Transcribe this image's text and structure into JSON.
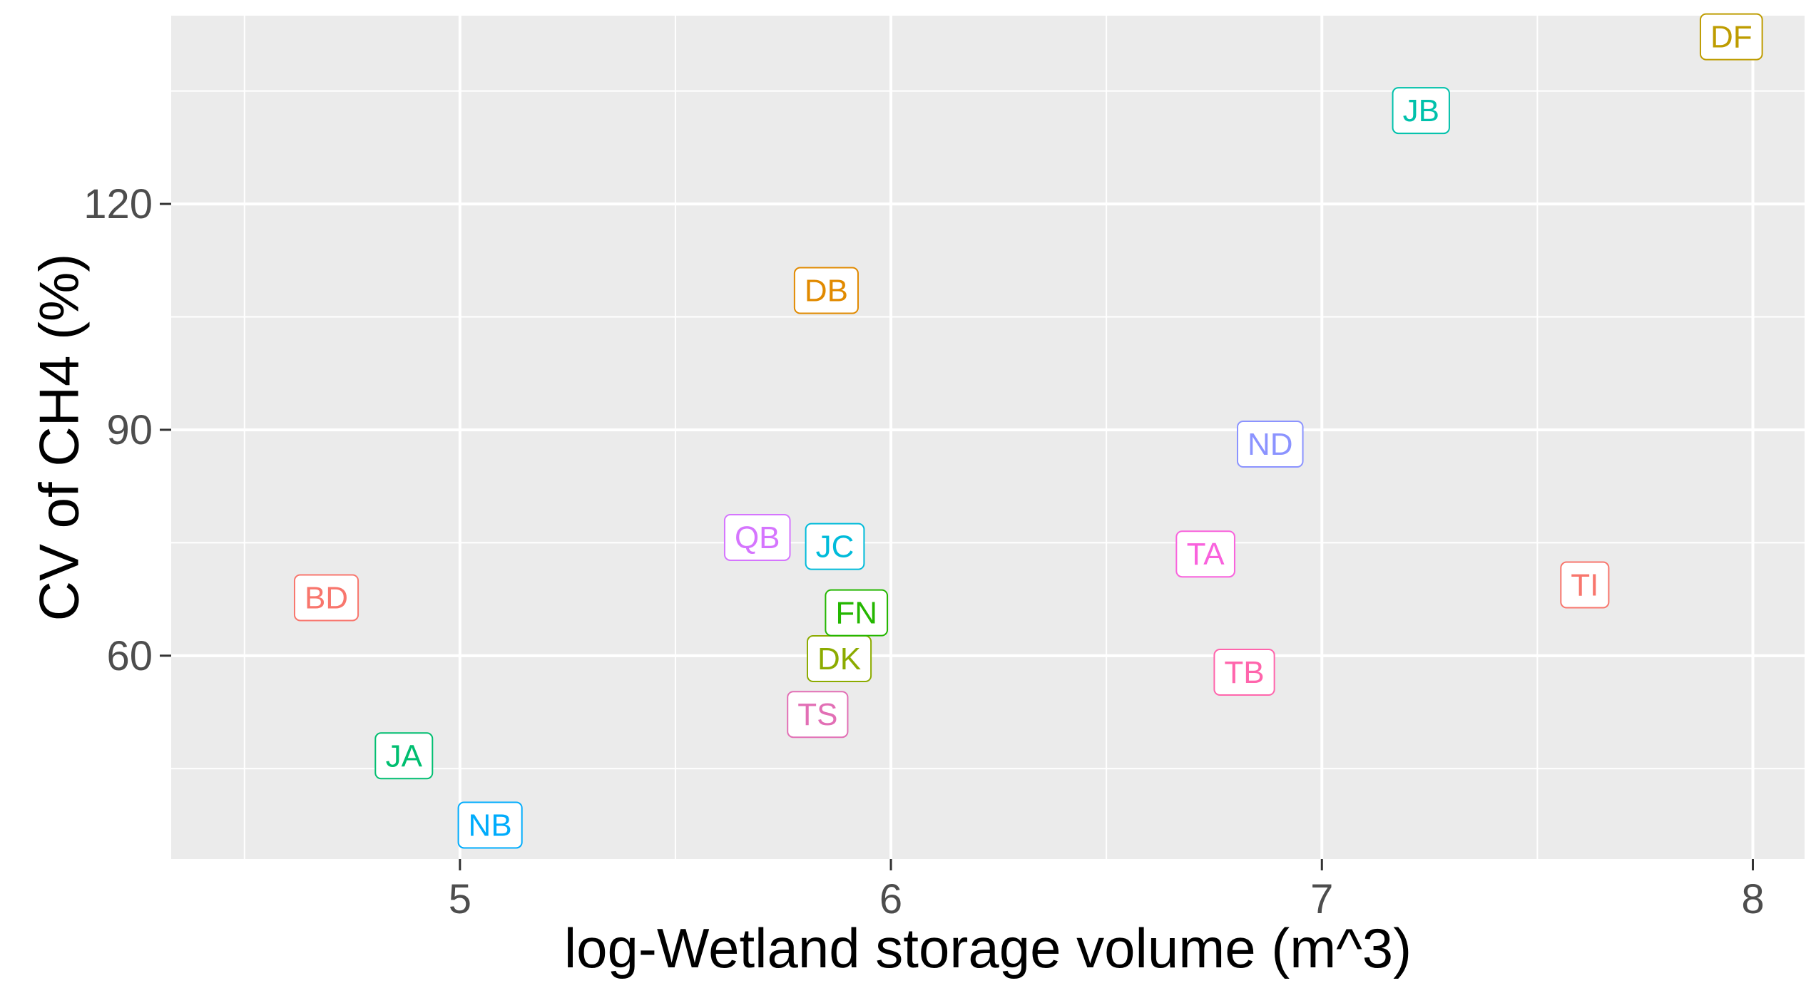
{
  "chart_data": {
    "type": "scatter",
    "title": "",
    "xlabel": "log-Wetland storage volume (m^3)",
    "ylabel": "CV of CH4 (%)",
    "xlim": [
      4.33,
      8.12
    ],
    "ylim": [
      33,
      145
    ],
    "x_ticks": [
      5,
      6,
      7,
      8
    ],
    "y_ticks": [
      60,
      90,
      120
    ],
    "x_tick_labels": [
      "5",
      "6",
      "7",
      "8"
    ],
    "y_tick_labels": [
      "60",
      "90",
      "120"
    ],
    "grid": true,
    "background": "#ebebeb",
    "marker": "label",
    "points": [
      {
        "label": "BD",
        "x": 4.69,
        "y": 67.7,
        "color": "#F8766D"
      },
      {
        "label": "DB",
        "x": 5.85,
        "y": 108.5,
        "color": "#E18A00"
      },
      {
        "label": "DF",
        "x": 7.95,
        "y": 142.2,
        "color": "#BE9C00"
      },
      {
        "label": "DK",
        "x": 5.88,
        "y": 59.6,
        "color": "#8CAB00"
      },
      {
        "label": "FN",
        "x": 5.92,
        "y": 65.7,
        "color": "#24B700"
      },
      {
        "label": "JA",
        "x": 4.87,
        "y": 46.7,
        "color": "#00BE70"
      },
      {
        "label": "JB",
        "x": 7.23,
        "y": 132.4,
        "color": "#00C1AB"
      },
      {
        "label": "JC",
        "x": 5.87,
        "y": 74.5,
        "color": "#00BBDA"
      },
      {
        "label": "NB",
        "x": 5.07,
        "y": 37.5,
        "color": "#00ACFC"
      },
      {
        "label": "ND",
        "x": 6.88,
        "y": 88.1,
        "color": "#8B93FF"
      },
      {
        "label": "QB",
        "x": 5.69,
        "y": 75.7,
        "color": "#D575FE"
      },
      {
        "label": "TA",
        "x": 6.73,
        "y": 73.5,
        "color": "#F962DD"
      },
      {
        "label": "TB",
        "x": 6.82,
        "y": 57.8,
        "color": "#FF65AC"
      },
      {
        "label": "TI",
        "x": 7.61,
        "y": 69.4,
        "color": "#F8766D"
      },
      {
        "label": "TS",
        "x": 5.83,
        "y": 52.2,
        "color": "#E26FB5"
      }
    ]
  }
}
